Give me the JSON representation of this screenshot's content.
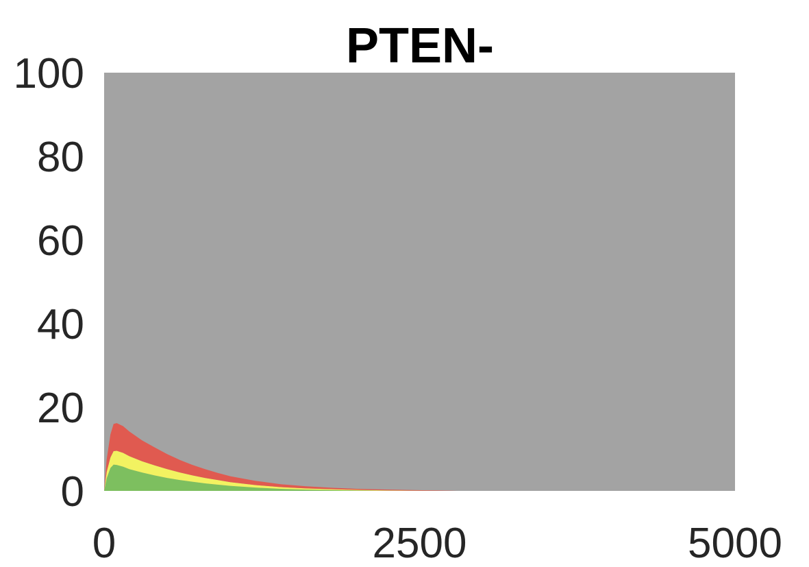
{
  "chart_data": {
    "type": "area",
    "stacked": true,
    "title": "PTEN-",
    "xlabel": "",
    "ylabel": "",
    "xlim": [
      0,
      5000
    ],
    "ylim": [
      0,
      100
    ],
    "x_ticks": [
      {
        "value": 0,
        "label": "0"
      },
      {
        "value": 2500,
        "label": "2500"
      },
      {
        "value": 5000,
        "label": "5000"
      }
    ],
    "y_ticks": [
      {
        "value": 0,
        "label": "0"
      },
      {
        "value": 20,
        "label": "20"
      },
      {
        "value": 40,
        "label": "40"
      },
      {
        "value": 60,
        "label": "60"
      },
      {
        "value": 80,
        "label": "80"
      },
      {
        "value": 100,
        "label": "100"
      }
    ],
    "grid": false,
    "legend": "none",
    "background_series_color": "#a3a3a3",
    "x": [
      0,
      20,
      50,
      75,
      100,
      150,
      200,
      300,
      400,
      500,
      600,
      700,
      800,
      900,
      1000,
      1200,
      1400,
      1600,
      1800,
      2000,
      2200,
      2400,
      2600,
      2750,
      2800,
      3000,
      5000
    ],
    "series": [
      {
        "color": "#7dbf5f",
        "values": [
          0,
          3.0,
          5.5,
          6.3,
          6.2,
          5.8,
          5.2,
          4.4,
          3.7,
          3.1,
          2.6,
          2.2,
          1.8,
          1.5,
          1.2,
          0.8,
          0.5,
          0.3,
          0.2,
          0.1,
          0.05,
          0.02,
          0.01,
          0,
          0,
          0,
          0
        ]
      },
      {
        "color": "#f2f261",
        "values": [
          0,
          1.5,
          2.5,
          3.2,
          3.4,
          3.3,
          3.1,
          2.7,
          2.4,
          2.1,
          1.8,
          1.5,
          1.3,
          1.1,
          0.9,
          0.6,
          0.4,
          0.3,
          0.2,
          0.15,
          0.1,
          0.05,
          0.02,
          0,
          0,
          0,
          0
        ]
      },
      {
        "color": "#e05a50",
        "values": [
          0,
          3.0,
          5.5,
          6.5,
          6.6,
          6.4,
          5.9,
          5.0,
          4.3,
          3.6,
          3.0,
          2.5,
          2.1,
          1.7,
          1.4,
          1.0,
          0.7,
          0.5,
          0.35,
          0.25,
          0.2,
          0.15,
          0.1,
          0.05,
          0,
          0,
          0
        ]
      }
    ]
  }
}
